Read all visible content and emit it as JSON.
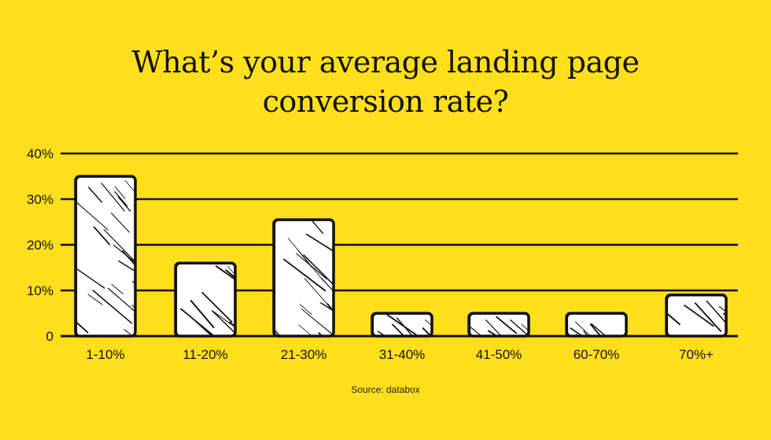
{
  "colors": {
    "background": "#FFDF1B",
    "bar_fill": "#FFFFFF",
    "ink": "#111111"
  },
  "chart_data": {
    "type": "bar",
    "title_lines": [
      "What’s your average landing page",
      "conversion rate?"
    ],
    "categories": [
      "1-10%",
      "11-20%",
      "21-30%",
      "31-40%",
      "41-50%",
      "60-70%",
      "70%+"
    ],
    "values": [
      35,
      16,
      25.5,
      5,
      5,
      5,
      9
    ],
    "ylim": [
      0,
      40
    ],
    "yticks": [
      0,
      10,
      20,
      30,
      40
    ],
    "ytick_labels": [
      "0",
      "10%",
      "20%",
      "30%",
      "40%"
    ],
    "grid": true,
    "style": "hand-drawn hatched bars"
  },
  "source": "Source: databox"
}
